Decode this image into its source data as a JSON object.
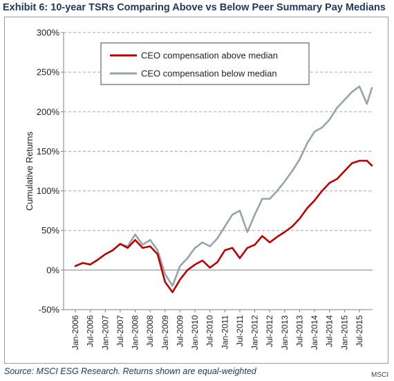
{
  "page": {
    "title": "Exhibit 6: 10-year TSRs Comparing Above vs Below Peer Summary Pay Medians",
    "source": "Source:  MSCI ESG Research. Returns shown are equal-weighted",
    "brand": "MSCI"
  },
  "colors": {
    "above": "#c00000",
    "below": "#95a3ab",
    "grid": "#a6a6a6",
    "title": "#1f3864"
  },
  "chart_data": {
    "type": "line",
    "title": "Exhibit 6: 10-year TSRs Comparing Above vs Below Peer Summary Pay Medians",
    "xlabel": "",
    "ylabel": "Cumulative Returns",
    "ylim": [
      -50,
      300
    ],
    "yticks": [
      "-50%",
      "0%",
      "50%",
      "100%",
      "150%",
      "200%",
      "250%",
      "300%"
    ],
    "yticks_values": [
      -50,
      0,
      50,
      100,
      150,
      200,
      250,
      300
    ],
    "grid": "horizontal dashed",
    "legend_position": "top-left",
    "x_tick_labels": [
      "Jan-2006",
      "Jul-2006",
      "Jan-2007",
      "Jul-2007",
      "Jan-2008",
      "Jul-2008",
      "Jan-2009",
      "Jul-2009",
      "Jan-2010",
      "Jul-2010",
      "Jan-2011",
      "Jul-2011",
      "Jan-2012",
      "Jul-2012",
      "Jan-2013",
      "Jul-2013",
      "Jan-2014",
      "Jul-2014",
      "Jan-2015",
      "Jul-2015"
    ],
    "x": [
      "Jan-2006",
      "Apr-2006",
      "Jul-2006",
      "Oct-2006",
      "Jan-2007",
      "Apr-2007",
      "Jul-2007",
      "Oct-2007",
      "Jan-2008",
      "Apr-2008",
      "Jul-2008",
      "Oct-2008",
      "Jan-2009",
      "Apr-2009",
      "Jul-2009",
      "Oct-2009",
      "Jan-2010",
      "Apr-2010",
      "Jul-2010",
      "Oct-2010",
      "Jan-2011",
      "Apr-2011",
      "Jul-2011",
      "Oct-2011",
      "Jan-2012",
      "Apr-2012",
      "Jul-2012",
      "Oct-2012",
      "Jan-2013",
      "Apr-2013",
      "Jul-2013",
      "Oct-2013",
      "Jan-2014",
      "Apr-2014",
      "Jul-2014",
      "Oct-2014",
      "Jan-2015",
      "Apr-2015",
      "Jul-2015",
      "Oct-2015",
      "Dec-2015"
    ],
    "series": [
      {
        "name": "CEO compensation above median",
        "color": "#c00000",
        "values": [
          5,
          9,
          7,
          13,
          20,
          25,
          33,
          28,
          38,
          28,
          30,
          20,
          -15,
          -28,
          -12,
          0,
          7,
          12,
          3,
          10,
          25,
          28,
          15,
          28,
          32,
          43,
          35,
          42,
          48,
          55,
          65,
          78,
          88,
          100,
          110,
          115,
          125,
          135,
          138,
          138,
          132
        ]
      },
      {
        "name": "CEO compensation below median",
        "color": "#95a3ab",
        "values": [
          5,
          9,
          7,
          13,
          20,
          25,
          33,
          30,
          45,
          32,
          38,
          25,
          -5,
          -20,
          5,
          15,
          28,
          35,
          30,
          40,
          55,
          70,
          75,
          48,
          70,
          90,
          90,
          100,
          112,
          125,
          140,
          160,
          175,
          180,
          190,
          205,
          215,
          225,
          232,
          210,
          230
        ]
      }
    ]
  }
}
